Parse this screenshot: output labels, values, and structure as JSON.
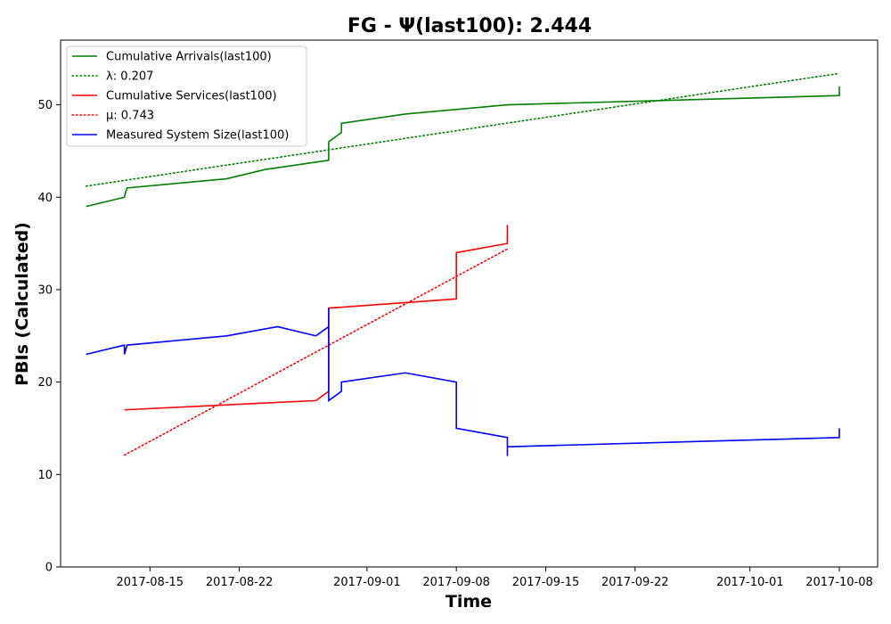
{
  "chart_data": {
    "type": "line",
    "title": "FG -  Ψ(last100): 2.444",
    "xlabel": "Time",
    "ylabel": "PBIs (Calculated)",
    "ylim": [
      0,
      57
    ],
    "xlim": [
      "2017-08-08",
      "2017-10-11"
    ],
    "yticks": [
      0,
      10,
      20,
      30,
      40,
      50
    ],
    "xticks": [
      "2017-08-15",
      "2017-08-22",
      "2017-09-01",
      "2017-09-08",
      "2017-09-15",
      "2017-09-22",
      "2017-10-01",
      "2017-10-08"
    ],
    "grid": false,
    "legend_position": "top-left",
    "series": [
      {
        "name": "Cumulative Arrivals(last100)",
        "color": "#008000",
        "style": "solid",
        "points": [
          [
            "2017-08-10",
            39
          ],
          [
            "2017-08-13 00:00",
            40
          ],
          [
            "2017-08-13 02:00",
            40.5
          ],
          [
            "2017-08-13 05:00",
            41
          ],
          [
            "2017-08-21",
            42
          ],
          [
            "2017-08-24",
            43
          ],
          [
            "2017-08-29",
            44
          ],
          [
            "2017-08-29 00:01",
            46
          ],
          [
            "2017-08-30",
            47
          ],
          [
            "2017-08-30 00:01",
            48
          ],
          [
            "2017-09-04",
            49
          ],
          [
            "2017-09-12",
            50
          ],
          [
            "2017-10-08",
            51
          ],
          [
            "2017-10-08 00:01",
            52
          ]
        ]
      },
      {
        "name": "λ: 0.207",
        "color": "#008000",
        "style": "dotted",
        "points": [
          [
            "2017-08-10",
            41.2
          ],
          [
            "2017-10-08",
            53.4
          ]
        ]
      },
      {
        "name": "Cumulative Services(last100)",
        "color": "#ff0000",
        "style": "solid",
        "points": [
          [
            "2017-08-13",
            17
          ],
          [
            "2017-08-28",
            18
          ],
          [
            "2017-08-29",
            19
          ],
          [
            "2017-08-29 00:01",
            28
          ],
          [
            "2017-09-08",
            29
          ],
          [
            "2017-09-08 00:01",
            34
          ],
          [
            "2017-09-12",
            35
          ],
          [
            "2017-09-12 00:01",
            37
          ]
        ]
      },
      {
        "name": "μ: 0.743",
        "color": "#ff0000",
        "style": "dotted",
        "points": [
          [
            "2017-08-13",
            12.1
          ],
          [
            "2017-09-12",
            34.4
          ]
        ]
      },
      {
        "name": "Measured System Size(last100)",
        "color": "#0000ff",
        "style": "solid",
        "points": [
          [
            "2017-08-10",
            23
          ],
          [
            "2017-08-13",
            24
          ],
          [
            "2017-08-13 00:01",
            23
          ],
          [
            "2017-08-13 05:00",
            24
          ],
          [
            "2017-08-21",
            25
          ],
          [
            "2017-08-25",
            26
          ],
          [
            "2017-08-28",
            25
          ],
          [
            "2017-08-29",
            26
          ],
          [
            "2017-08-29 00:01",
            28
          ],
          [
            "2017-08-29 00:02",
            18
          ],
          [
            "2017-08-30",
            19
          ],
          [
            "2017-08-30 00:01",
            20
          ],
          [
            "2017-09-04",
            21
          ],
          [
            "2017-09-08",
            20
          ],
          [
            "2017-09-08 00:01",
            15
          ],
          [
            "2017-09-12",
            14
          ],
          [
            "2017-09-12 00:01",
            12
          ],
          [
            "2017-09-12 00:02",
            13
          ],
          [
            "2017-10-08",
            14
          ],
          [
            "2017-10-08 00:01",
            15
          ]
        ]
      }
    ]
  }
}
